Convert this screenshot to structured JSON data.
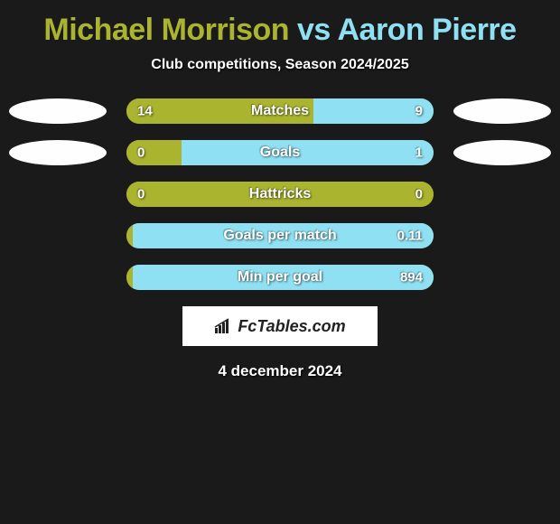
{
  "title": {
    "player1": "Michael Morrison",
    "vs": "vs",
    "player2": "Aaron Pierre"
  },
  "subtitle": "Club competitions, Season 2024/2025",
  "colors": {
    "p1": "#aab42f",
    "p2": "#8fe0f2",
    "ellipse": "#fefefe",
    "bg": "#1a1a1a"
  },
  "stats": [
    {
      "label": "Matches",
      "left_val": "14",
      "right_val": "9",
      "left_pct": 60.87,
      "right_pct": 39.13,
      "show_ellipses": true
    },
    {
      "label": "Goals",
      "left_val": "0",
      "right_val": "1",
      "left_pct": 18,
      "right_pct": 82,
      "show_ellipses": true
    },
    {
      "label": "Hattricks",
      "left_val": "0",
      "right_val": "0",
      "left_pct": 100,
      "right_pct": 0,
      "show_ellipses": false
    },
    {
      "label": "Goals per match",
      "left_val": "",
      "right_val": "0.11",
      "left_pct": 2,
      "right_pct": 98,
      "show_ellipses": false
    },
    {
      "label": "Min per goal",
      "left_val": "",
      "right_val": "894",
      "left_pct": 2,
      "right_pct": 98,
      "show_ellipses": false
    }
  ],
  "footer": {
    "logo_text": "FcTables.com",
    "date_text": "4 december 2024"
  }
}
